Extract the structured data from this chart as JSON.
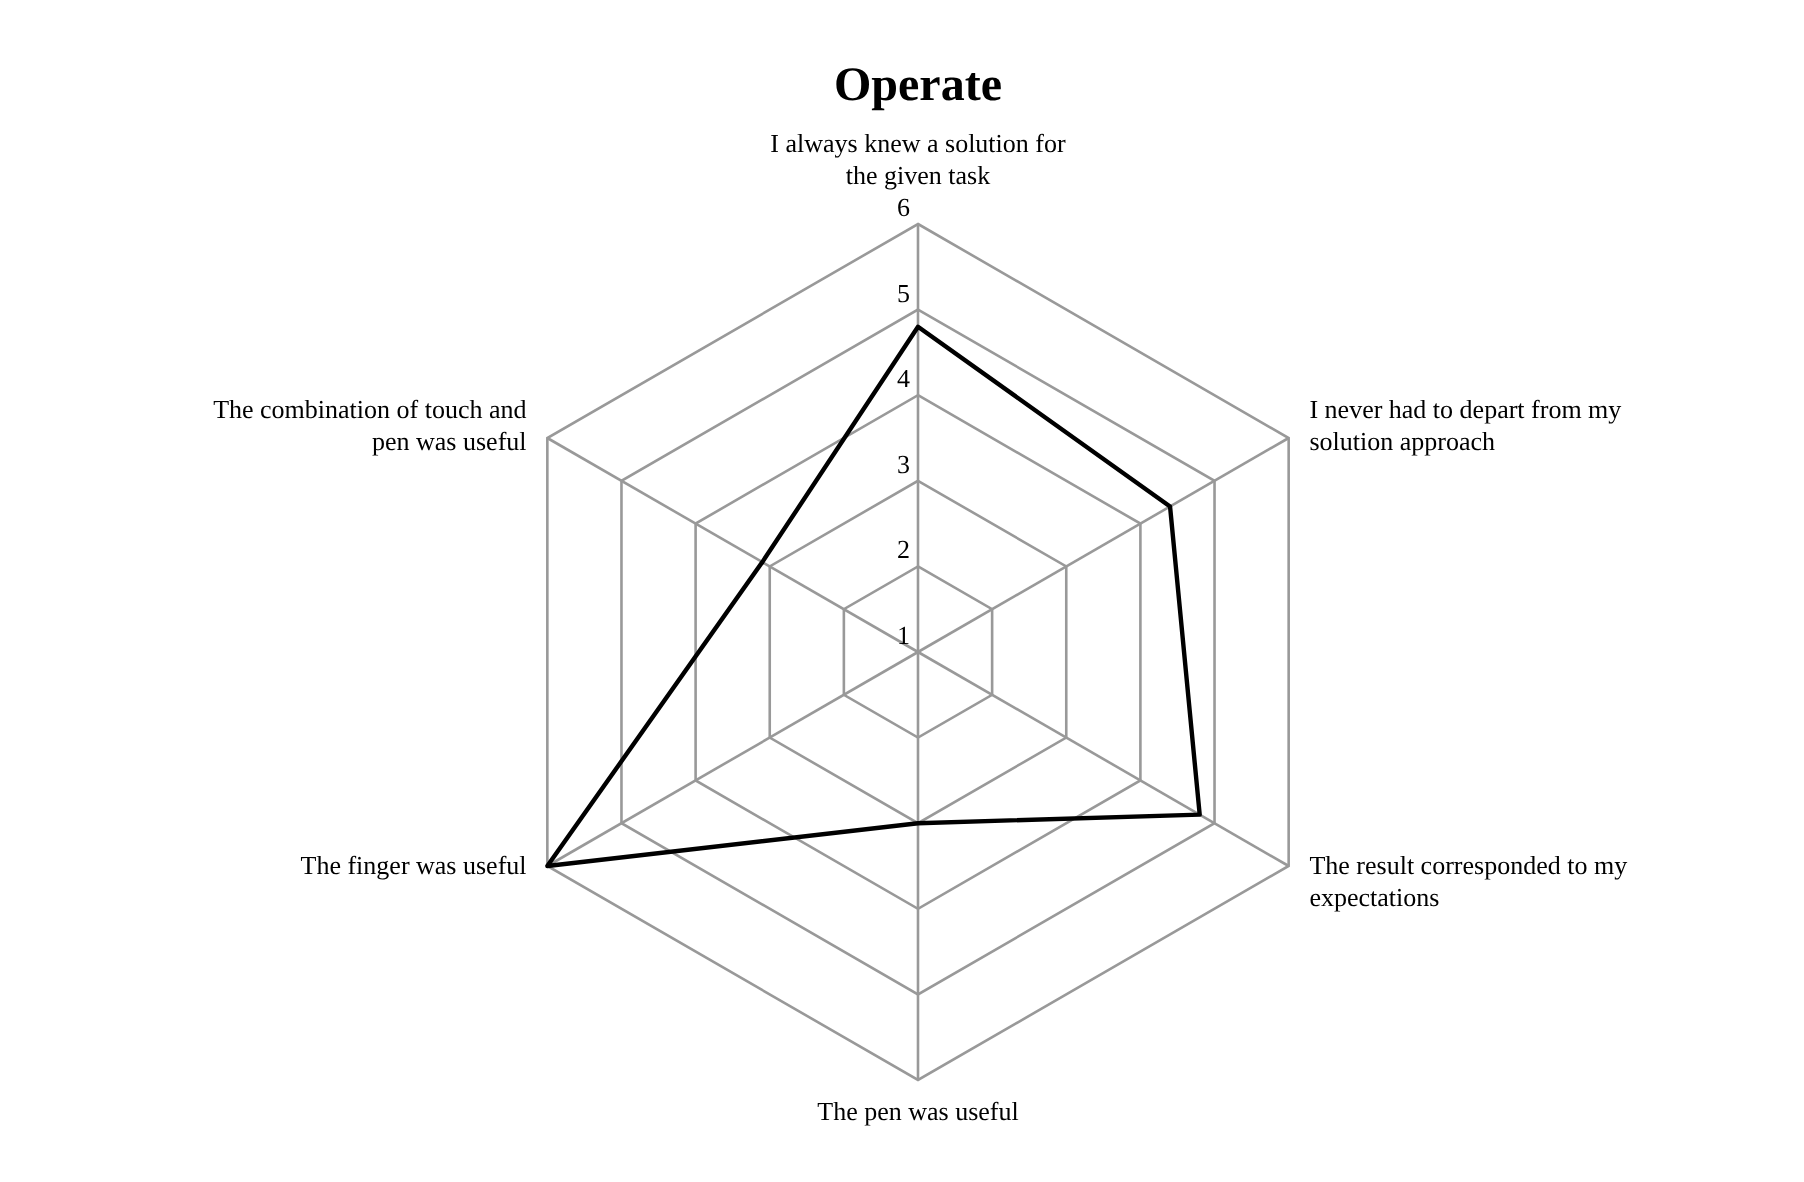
{
  "chart_data": {
    "type": "radar",
    "title": "Operate",
    "categories": [
      "I always knew a solution for the given task",
      "I never had to depart from my solution approach",
      "The result corresponded to my expectations",
      "The pen was useful",
      "The finger was useful",
      "The combination of touch and pen was useful"
    ],
    "series": [
      {
        "color": "#000000",
        "values": [
          4.8,
          4.4,
          4.8,
          3,
          6,
          3.1
        ]
      }
    ],
    "ylim": [
      1,
      6
    ],
    "yticks": [
      1,
      2,
      3,
      4,
      5,
      6
    ],
    "grid": true
  }
}
